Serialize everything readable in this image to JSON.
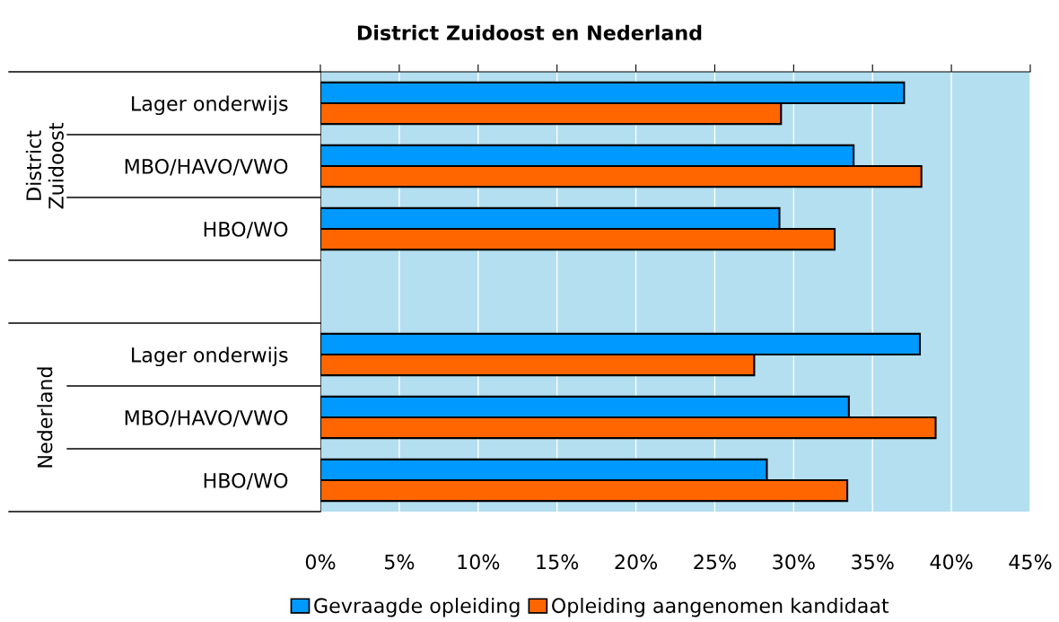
{
  "chart_data": {
    "type": "bar",
    "orientation": "horizontal",
    "title": "District Zuidoost en Nederland",
    "categories": [
      "Lager onderwijs",
      "MBO/HAVO/VWO",
      "HBO/WO",
      null,
      "Lager onderwijs",
      "MBO/HAVO/VWO",
      "HBO/WO"
    ],
    "annotations": [
      "District\nZuidoost",
      "Nederland"
    ],
    "series": [
      {
        "name": "Gevraagde opleiding",
        "color": "#0099ff",
        "values": [
          37.0,
          33.8,
          29.1,
          null,
          38.0,
          33.5,
          28.3
        ]
      },
      {
        "name": "Opleiding aangenomen kandidaat",
        "color": "#ff6600",
        "values": [
          29.2,
          38.1,
          32.6,
          null,
          27.5,
          39.0,
          33.4
        ]
      }
    ],
    "xlim": [
      0,
      45
    ],
    "xticks": [
      {
        "value": 0,
        "label": "0%"
      },
      {
        "value": 5,
        "label": "5%"
      },
      {
        "value": 10,
        "label": "10%"
      },
      {
        "value": 15,
        "label": "15%"
      },
      {
        "value": 20,
        "label": "20%"
      },
      {
        "value": 25,
        "label": "25%"
      },
      {
        "value": 30,
        "label": "30%"
      },
      {
        "value": 35,
        "label": "35%"
      },
      {
        "value": 40,
        "label": "40%"
      },
      {
        "value": 45,
        "label": "45%"
      }
    ],
    "grid": "x",
    "legend": "bottom"
  }
}
